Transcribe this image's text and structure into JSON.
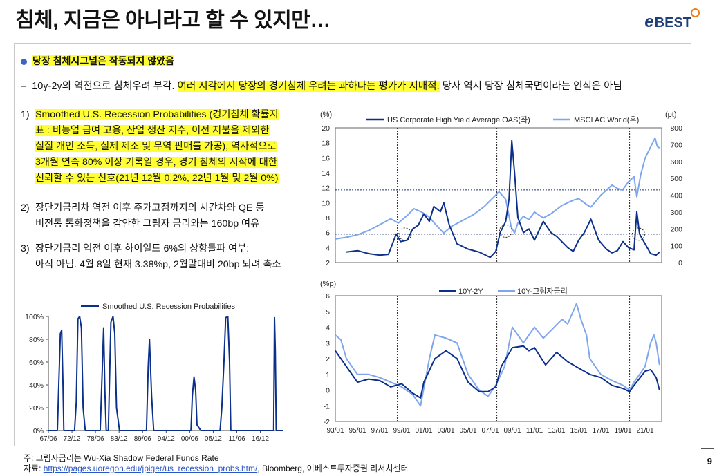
{
  "header": {
    "title": "침체, 지금은 아니라고 할 수 있지만…",
    "logo_e": "e",
    "logo_text": "BEST"
  },
  "headline": "당장 침체시그널은 작동되지 않았음",
  "summary": {
    "pre": "10y-2y의 역전으로 침체우려 부각. ",
    "highlight": "여러 시각에서 당장의 경기침체 우려는 과하다는 평가가 지배적.",
    "post": " 당사 역시 당장 침체국면이라는 인식은 아님"
  },
  "items": [
    {
      "num": "1)",
      "lines": [
        "Smoothed U.S. Recession Probabilities (경기침체 확률지",
        "표 : 비농업 급여 고용, 산업 생산 지수, 이전 지불을 제외한",
        "실질 개인 소득, 실제 제조 및 무역 판매를 가공), 역사적으로",
        "3개월 연속 80% 이상 기록일 경우, 경기 침체의 시작에 대한",
        "신뢰할 수 있는 신호(21년 12월 0.2%, 22년 1월 및 2월 0%)"
      ]
    },
    {
      "num": "2)",
      "lines": [
        "장단기금리차 역전 이후 주가고점까지의 시간차와 QE 등",
        "비전통 통화정책을 감안한 그림자 금리와는 160bp 여유"
      ]
    },
    {
      "num": "3)",
      "lines": [
        "장단기금리 역전 이후 하이일드 6%의 상향돌파 여부:",
        "아직 아님. 4월 8일 현재 3.38%p, 2월말대비 20bp 되려 축소"
      ]
    }
  ],
  "footer": {
    "note": "주: 그림자금리는 Wu-Xia Shadow Federal Funds Rate",
    "source_prefix": "자료: ",
    "source_link": "https://pages.uoregon.edu/jpiger/us_recession_probs.htm/",
    "source_suffix": ", Bloomberg, 이베스트투자증권 리서치센터"
  },
  "page_number": "9",
  "colors": {
    "dark": "#0b2f8a",
    "light": "#7ea6ee",
    "highlight": "#ffff33",
    "accent": "#f07d1b"
  },
  "chart_data": [
    {
      "type": "line",
      "title": "",
      "legend": [
        "Smoothed U.S. Recession Probabilities"
      ],
      "x_ticks": [
        "67/06",
        "72/12",
        "78/06",
        "83/12",
        "89/06",
        "94/12",
        "00/06",
        "05/12",
        "11/06",
        "16/12"
      ],
      "y_ticks": [
        "0%",
        "20%",
        "40%",
        "60%",
        "80%",
        "100%"
      ],
      "ylim": [
        0,
        100
      ],
      "series": [
        {
          "name": "Smoothed U.S. Recession Probabilities",
          "color": "#0b2f8a",
          "x": [
            1967.4,
            1969.5,
            1969.9,
            1970.2,
            1970.5,
            1970.8,
            1971.0,
            1972.0,
            1973.5,
            1973.9,
            1974.3,
            1974.7,
            1975.1,
            1975.5,
            1976.0,
            1978.0,
            1979.5,
            1980.0,
            1980.3,
            1980.6,
            1980.9,
            1981.4,
            1981.7,
            1982.0,
            1982.5,
            1982.9,
            1983.3,
            1984.0,
            1988.0,
            1990.3,
            1990.7,
            1991.0,
            1991.5,
            1992.0,
            1998.0,
            2000.7,
            2001.0,
            2001.4,
            2001.8,
            2002.1,
            2003.0,
            2007.5,
            2007.9,
            2008.4,
            2008.8,
            2009.3,
            2009.7,
            2010.0,
            2016.0,
            2019.5,
            2020.0,
            2020.2,
            2020.4,
            2020.6,
            2022.2
          ],
          "values": [
            0,
            0,
            50,
            85,
            88,
            40,
            0,
            0,
            0,
            25,
            98,
            100,
            90,
            20,
            0,
            0,
            0,
            55,
            90,
            35,
            0,
            0,
            50,
            95,
            100,
            85,
            20,
            0,
            0,
            0,
            55,
            80,
            30,
            0,
            0,
            0,
            30,
            47,
            35,
            5,
            0,
            0,
            20,
            60,
            99,
            100,
            60,
            0,
            0,
            0,
            0,
            99,
            70,
            0,
            0
          ]
        }
      ]
    },
    {
      "type": "line",
      "title": "",
      "legend": [
        "US Corporate High Yield Average OAS(좌)",
        "MSCI AC World(우)"
      ],
      "x_ticks": [
        "93/01",
        "95/01",
        "97/01",
        "99/01",
        "01/01",
        "03/01",
        "05/01",
        "07/01",
        "09/01",
        "11/01",
        "13/01",
        "15/01",
        "17/01",
        "19/01",
        "21/01"
      ],
      "y_ticks_left": [
        "2",
        "4",
        "6",
        "8",
        "10",
        "12",
        "14",
        "16",
        "18",
        "20"
      ],
      "ylim_left": [
        2,
        20
      ],
      "ylabel_left": "(%)",
      "y_ticks_right": [
        "0",
        "100",
        "200",
        "300",
        "400",
        "500",
        "600",
        "700",
        "800"
      ],
      "ylim_right": [
        0,
        800
      ],
      "ylabel_right": "(pt)",
      "series": [
        {
          "name": "US Corporate High Yield Average OAS(좌)",
          "color": "#0b2f8a",
          "axis": "left",
          "x": [
            1994.0,
            1995.0,
            1996.0,
            1997.0,
            1997.8,
            1998.5,
            1998.9,
            1999.5,
            2000.0,
            2000.5,
            2001.0,
            2001.5,
            2001.9,
            2002.5,
            2002.8,
            2003.3,
            2004.0,
            2005.0,
            2006.0,
            2007.0,
            2007.5,
            2007.9,
            2008.4,
            2008.7,
            2008.95,
            2009.2,
            2009.5,
            2010.0,
            2010.5,
            2011.0,
            2011.8,
            2012.5,
            2013.0,
            2014.0,
            2014.5,
            2015.0,
            2015.5,
            2016.1,
            2016.8,
            2017.5,
            2018.0,
            2018.5,
            2019.0,
            2019.5,
            2020.0,
            2020.25,
            2020.5,
            2021.0,
            2021.5,
            2022.0,
            2022.3
          ],
          "values": [
            3.4,
            3.6,
            3.2,
            3.0,
            3.1,
            5.8,
            4.8,
            5.0,
            6.5,
            7.0,
            8.5,
            7.5,
            9.5,
            8.8,
            10.0,
            7.0,
            4.5,
            3.8,
            3.4,
            2.7,
            3.5,
            6.0,
            7.5,
            10.5,
            18.3,
            14.0,
            8.0,
            6.0,
            6.5,
            5.0,
            7.5,
            6.0,
            5.5,
            4.0,
            3.5,
            5.0,
            6.0,
            7.8,
            5.0,
            3.8,
            3.3,
            3.6,
            4.8,
            4.0,
            3.7,
            8.8,
            5.8,
            4.5,
            3.2,
            3.0,
            3.4
          ]
        },
        {
          "name": "MSCI AC World(우)",
          "color": "#7ea6ee",
          "axis": "right",
          "x": [
            1993.0,
            1994.0,
            1995.0,
            1996.0,
            1997.0,
            1998.0,
            1998.7,
            1999.5,
            2000.1,
            2000.8,
            2001.5,
            2002.0,
            2002.8,
            2003.5,
            2004.5,
            2005.5,
            2006.5,
            2007.8,
            2008.4,
            2008.9,
            2009.2,
            2009.5,
            2010.0,
            2010.5,
            2011.0,
            2011.8,
            2012.5,
            2013.5,
            2014.5,
            2015.0,
            2015.8,
            2016.1,
            2017.0,
            2018.0,
            2018.5,
            2018.95,
            2019.5,
            2020.0,
            2020.25,
            2020.6,
            2021.0,
            2021.6,
            2021.9,
            2022.1,
            2022.3
          ],
          "values": [
            140,
            150,
            165,
            190,
            225,
            260,
            235,
            280,
            320,
            300,
            270,
            230,
            175,
            215,
            250,
            285,
            335,
            420,
            375,
            210,
            175,
            235,
            275,
            255,
            300,
            265,
            290,
            340,
            370,
            380,
            340,
            330,
            400,
            460,
            440,
            430,
            480,
            510,
            390,
            520,
            620,
            700,
            740,
            690,
            680
          ]
        }
      ],
      "reference_lines": {
        "left_values": [
          11.7,
          5.8
        ],
        "vertical_years": [
          1998.6,
          2007.6,
          2019.6
        ]
      }
    },
    {
      "type": "line",
      "title": "",
      "legend": [
        "10Y-2Y",
        "10Y-그림자금리"
      ],
      "x_ticks": [
        "93/01",
        "95/01",
        "97/01",
        "99/01",
        "01/01",
        "03/01",
        "05/01",
        "07/01",
        "09/01",
        "11/01",
        "13/01",
        "15/01",
        "17/01",
        "19/01",
        "21/01"
      ],
      "y_ticks": [
        "-2",
        "-1",
        "0",
        "1",
        "2",
        "3",
        "4",
        "5",
        "6"
      ],
      "ylim": [
        -2,
        6
      ],
      "ylabel": "(%p)",
      "series": [
        {
          "name": "10Y-2Y",
          "color": "#0b2f8a",
          "x": [
            1993.0,
            1994.0,
            1995.0,
            1996.0,
            1997.0,
            1998.0,
            1999.0,
            2000.0,
            2000.7,
            2001.0,
            2002.0,
            2003.0,
            2004.0,
            2005.0,
            2006.0,
            2006.8,
            2007.5,
            2008.0,
            2009.0,
            2010.0,
            2010.5,
            2011.0,
            2012.0,
            2013.0,
            2014.0,
            2015.0,
            2016.0,
            2017.0,
            2018.0,
            2019.0,
            2019.6,
            2020.0,
            2021.0,
            2021.5,
            2022.0,
            2022.3
          ],
          "values": [
            2.5,
            1.5,
            0.5,
            0.7,
            0.6,
            0.2,
            0.4,
            -0.2,
            -0.5,
            0.5,
            2.0,
            2.5,
            2.0,
            0.5,
            -0.1,
            -0.1,
            0.2,
            1.5,
            2.7,
            2.8,
            2.5,
            2.7,
            1.6,
            2.4,
            1.8,
            1.4,
            1.0,
            0.8,
            0.3,
            0.1,
            -0.1,
            0.3,
            1.2,
            1.3,
            0.8,
            0.0
          ]
        },
        {
          "name": "10Y-그림자금리",
          "color": "#7ea6ee",
          "x": [
            1993.0,
            1993.5,
            1994.0,
            1995.0,
            1996.0,
            1997.0,
            1998.0,
            1999.0,
            2000.0,
            2000.7,
            2001.5,
            2002.0,
            2003.0,
            2004.0,
            2005.0,
            2006.0,
            2006.8,
            2007.5,
            2008.3,
            2009.0,
            2009.5,
            2010.0,
            2011.0,
            2011.8,
            2012.5,
            2013.5,
            2014.0,
            2014.8,
            2015.2,
            2015.7,
            2016.0,
            2017.0,
            2018.0,
            2019.0,
            2019.6,
            2020.0,
            2020.5,
            2021.0,
            2021.5,
            2021.8,
            2022.0,
            2022.3
          ],
          "values": [
            3.5,
            3.2,
            2.0,
            1.0,
            1.0,
            0.8,
            0.5,
            0.2,
            -0.3,
            -1.0,
            2.0,
            3.5,
            3.3,
            3.0,
            1.0,
            0.0,
            -0.4,
            0.3,
            1.5,
            4.0,
            3.5,
            3.0,
            4.0,
            3.3,
            3.8,
            4.5,
            4.2,
            5.5,
            4.5,
            3.5,
            2.0,
            1.0,
            0.6,
            0.3,
            0.0,
            0.5,
            1.0,
            1.5,
            3.0,
            3.5,
            3.0,
            1.6
          ]
        }
      ],
      "reference_lines": {
        "vertical_years": [
          1998.6,
          2007.6,
          2019.6
        ]
      }
    }
  ]
}
